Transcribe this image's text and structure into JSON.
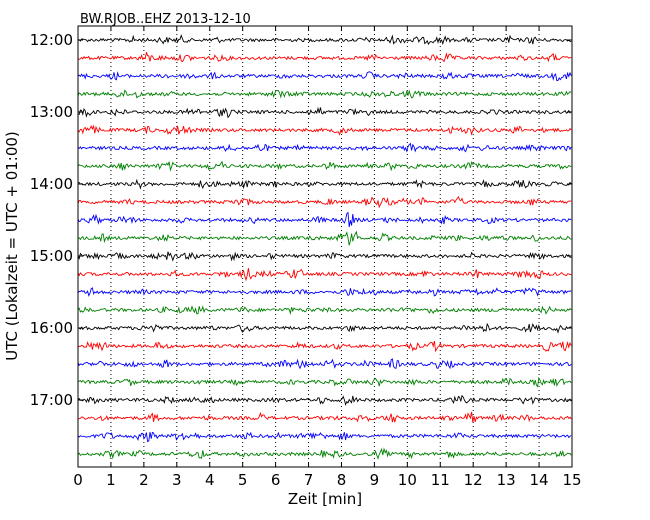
{
  "chart_data": {
    "type": "line",
    "title": "BW.RJOB..EHZ 2013-12-10",
    "xlabel": "Zeit  [min]",
    "ylabel": "UTC (Lokalzeit = UTC + 01:00)",
    "xlim": [
      0,
      15
    ],
    "x_ticks": [
      "0",
      "1",
      "2",
      "3",
      "4",
      "5",
      "6",
      "7",
      "8",
      "9",
      "10",
      "11",
      "12",
      "13",
      "14",
      "15"
    ],
    "y_tick_labels": [
      "12:00",
      "13:00",
      "14:00",
      "15:00",
      "16:00",
      "17:00"
    ],
    "grid": "vertical dotted lines at each minute",
    "traces_per_hour": 4,
    "trace_minutes": 15,
    "colors": [
      "#000000",
      "#ff0000",
      "#0000ff",
      "#008000"
    ],
    "traces": [
      {
        "start": "12:00",
        "color": "#000000"
      },
      {
        "start": "12:15",
        "color": "#ff0000"
      },
      {
        "start": "12:30",
        "color": "#0000ff"
      },
      {
        "start": "12:45",
        "color": "#008000"
      },
      {
        "start": "13:00",
        "color": "#000000"
      },
      {
        "start": "13:15",
        "color": "#ff0000"
      },
      {
        "start": "13:30",
        "color": "#0000ff"
      },
      {
        "start": "13:45",
        "color": "#008000"
      },
      {
        "start": "14:00",
        "color": "#000000"
      },
      {
        "start": "14:15",
        "color": "#ff0000"
      },
      {
        "start": "14:30",
        "color": "#0000ff"
      },
      {
        "start": "14:45",
        "color": "#008000"
      },
      {
        "start": "15:00",
        "color": "#000000"
      },
      {
        "start": "15:15",
        "color": "#ff0000"
      },
      {
        "start": "15:30",
        "color": "#0000ff"
      },
      {
        "start": "15:45",
        "color": "#008000"
      },
      {
        "start": "16:00",
        "color": "#000000"
      },
      {
        "start": "16:15",
        "color": "#ff0000"
      },
      {
        "start": "16:30",
        "color": "#0000ff"
      },
      {
        "start": "16:45",
        "color": "#008000"
      },
      {
        "start": "17:00",
        "color": "#000000"
      },
      {
        "start": "17:15",
        "color": "#ff0000"
      },
      {
        "start": "17:30",
        "color": "#0000ff"
      },
      {
        "start": "17:45",
        "color": "#008000"
      }
    ]
  }
}
